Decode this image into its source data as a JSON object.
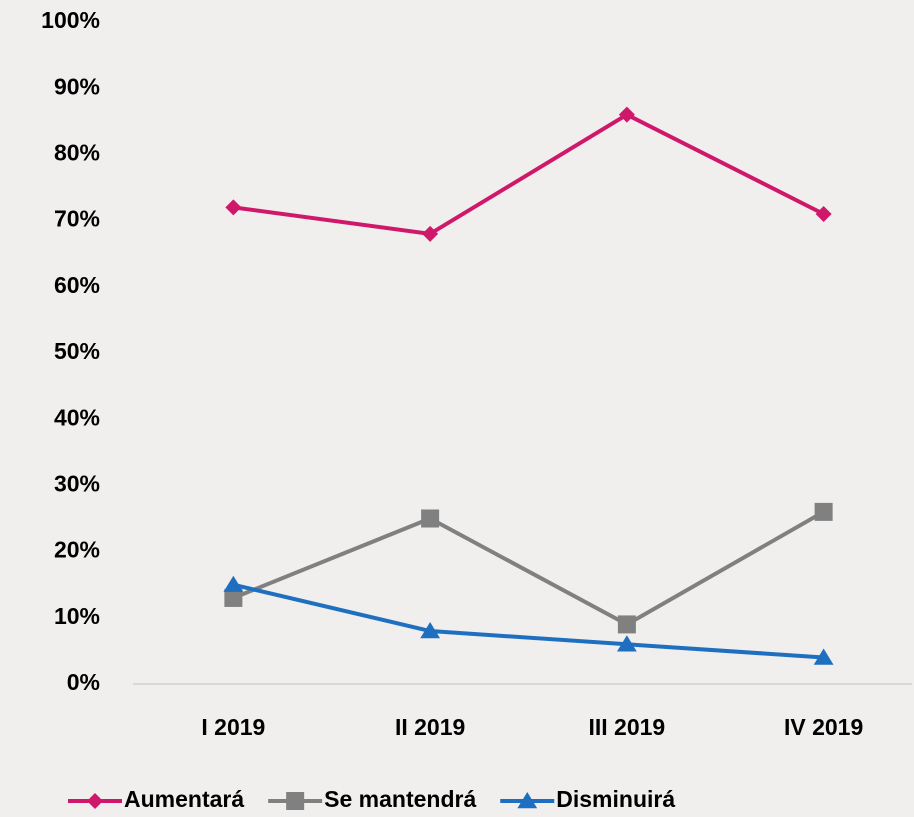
{
  "chart_data": {
    "type": "line",
    "categories": [
      "I 2019",
      "II 2019",
      "III 2019",
      "IV 2019"
    ],
    "series": [
      {
        "name": "Aumentará",
        "color": "#d0186b",
        "marker": "diamond",
        "values": [
          72,
          68,
          86,
          71
        ]
      },
      {
        "name": "Se mantendrá",
        "color": "#808080",
        "marker": "square",
        "values": [
          13,
          25,
          9,
          26
        ]
      },
      {
        "name": "Disminuirá",
        "color": "#1f6fc0",
        "marker": "triangle",
        "values": [
          15,
          8,
          6,
          4
        ]
      }
    ],
    "ylim": [
      0,
      100
    ],
    "yticks": [
      {
        "value": 0,
        "label": "0%"
      },
      {
        "value": 10,
        "label": "10%"
      },
      {
        "value": 20,
        "label": "20%"
      },
      {
        "value": 30,
        "label": "30%"
      },
      {
        "value": 40,
        "label": "40%"
      },
      {
        "value": 50,
        "label": "50%"
      },
      {
        "value": 60,
        "label": "60%"
      },
      {
        "value": 70,
        "label": "70%"
      },
      {
        "value": 80,
        "label": "80%"
      },
      {
        "value": 90,
        "label": "90%"
      },
      {
        "value": 100,
        "label": "100%"
      }
    ],
    "grid": false,
    "legend": "bottom"
  }
}
